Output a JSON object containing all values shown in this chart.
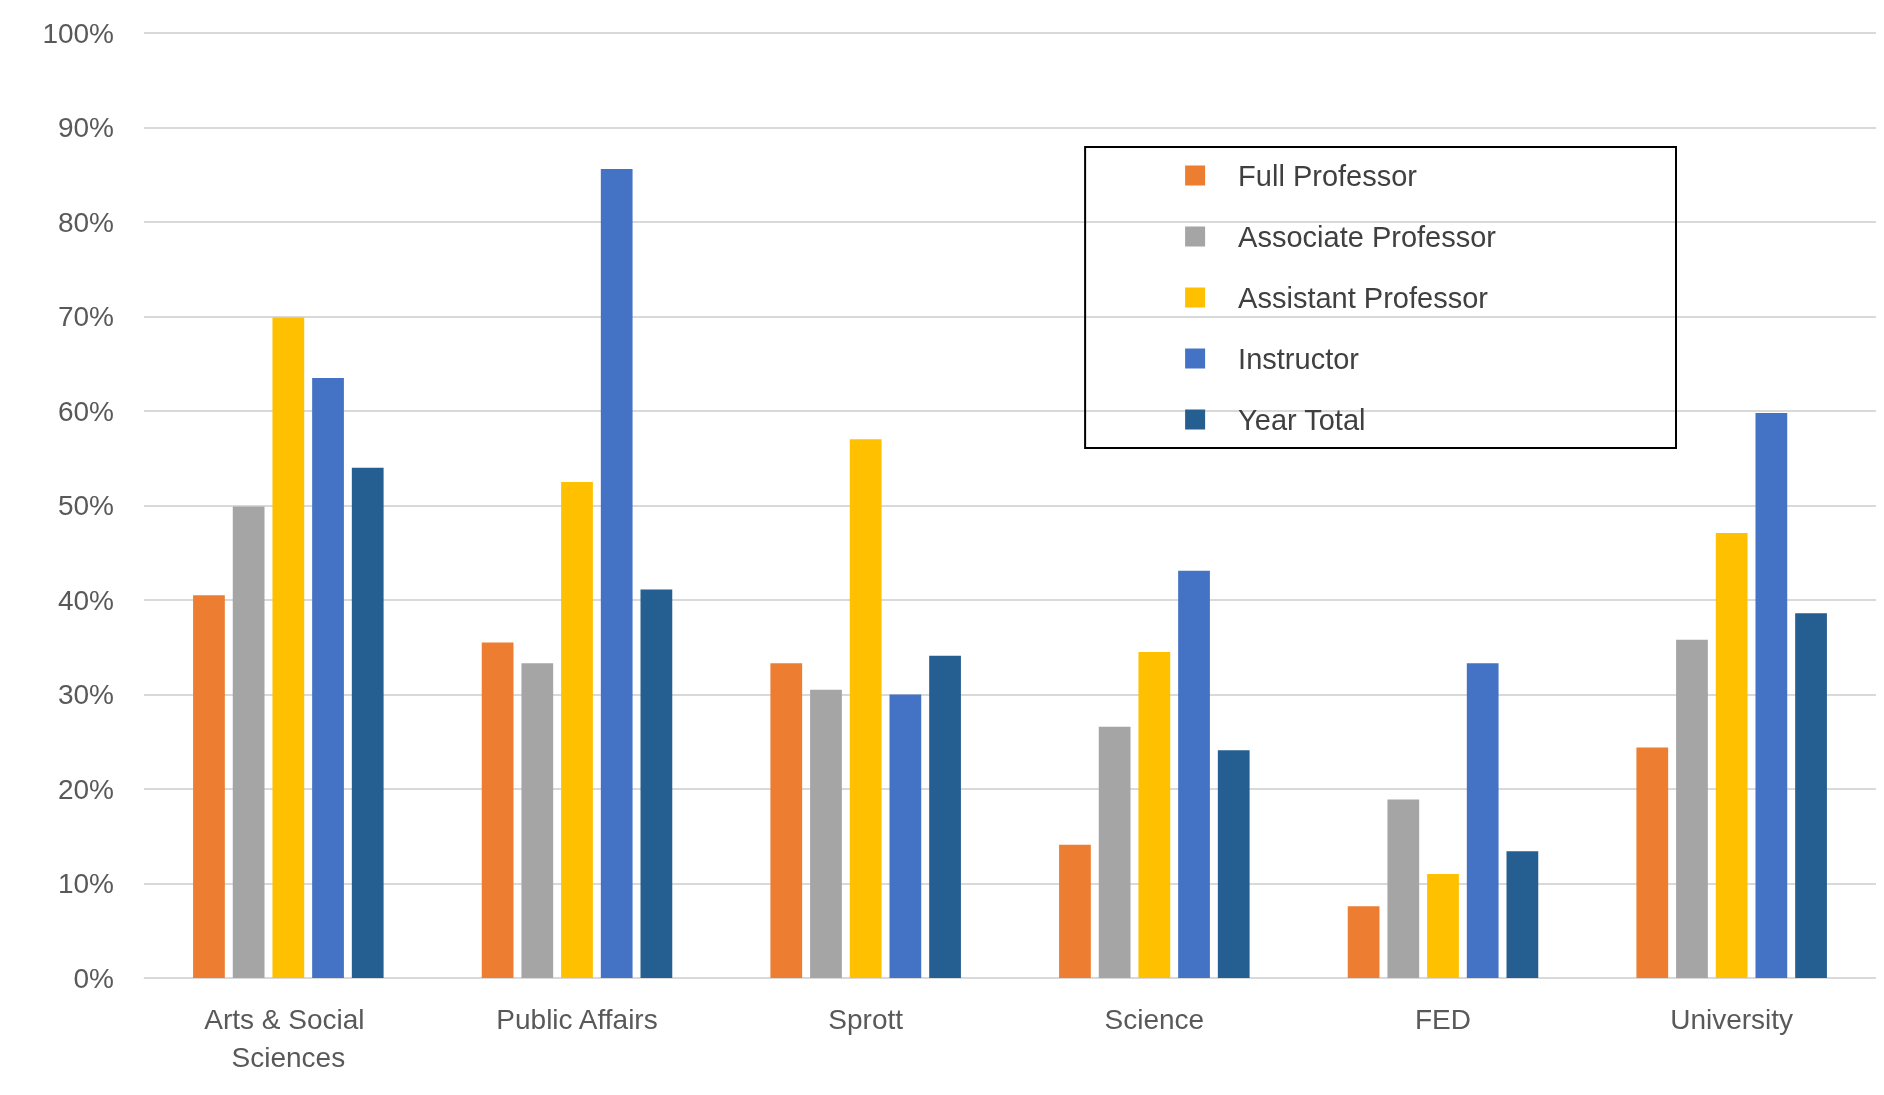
{
  "chart_data": {
    "type": "bar",
    "categories": [
      "Arts & Social Sciences",
      "Public Affairs",
      "Sprott",
      "Science",
      "FED",
      "University"
    ],
    "series": [
      {
        "name": "Full Professor",
        "color": "#ed7d31",
        "values": [
          40.5,
          35.5,
          33.3,
          14.1,
          7.6,
          24.4
        ]
      },
      {
        "name": "Associate Professor",
        "color": "#a5a5a5",
        "values": [
          49.9,
          33.3,
          30.5,
          26.6,
          18.9,
          35.8
        ]
      },
      {
        "name": "Assistant Professor",
        "color": "#ffc000",
        "values": [
          69.9,
          52.5,
          57,
          34.5,
          11,
          47.1
        ]
      },
      {
        "name": "Instructor",
        "color": "#4472c4",
        "values": [
          63.5,
          85.6,
          30,
          43.1,
          33.3,
          59.8
        ]
      },
      {
        "name": "Year Total",
        "color": "#255e91",
        "values": [
          54,
          41.1,
          34.1,
          24.1,
          13.4,
          38.6
        ]
      }
    ],
    "ylim": [
      0,
      100
    ],
    "yticks": [
      {
        "value": 0,
        "label": "0%"
      },
      {
        "value": 10,
        "label": "10%"
      },
      {
        "value": 20,
        "label": "20%"
      },
      {
        "value": 30,
        "label": "30%"
      },
      {
        "value": 40,
        "label": "40%"
      },
      {
        "value": 50,
        "label": "50%"
      },
      {
        "value": 60,
        "label": "60%"
      },
      {
        "value": 70,
        "label": "70%"
      },
      {
        "value": 80,
        "label": "80%"
      },
      {
        "value": 90,
        "label": "90%"
      },
      {
        "value": 100,
        "label": "100%"
      }
    ],
    "grid": "y",
    "legend": "top right"
  }
}
